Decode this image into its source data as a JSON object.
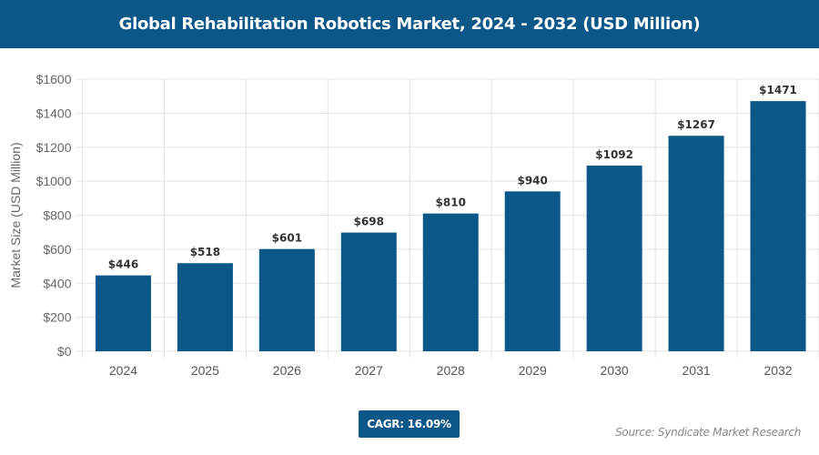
{
  "header": {
    "title": "Global Rehabilitation Robotics Market, 2024 - 2032 (USD Million)"
  },
  "chart_data": {
    "type": "bar",
    "title": "Global Rehabilitation Robotics Market, 2024 - 2032 (USD Million)",
    "xlabel": "",
    "ylabel": "Market Size (USD Million)",
    "categories": [
      "2024",
      "2025",
      "2026",
      "2027",
      "2028",
      "2029",
      "2030",
      "2031",
      "2032"
    ],
    "values": [
      446,
      518,
      601,
      698,
      810,
      940,
      1092,
      1267,
      1471
    ],
    "data_labels": [
      "$446",
      "$518",
      "$601",
      "$698",
      "$810",
      "$940",
      "$1092",
      "$1267",
      "$1471"
    ],
    "ylim": [
      0,
      1600
    ],
    "yticks": [
      0,
      200,
      400,
      600,
      800,
      1000,
      1200,
      1400,
      1600
    ],
    "ytick_labels": [
      "$0",
      "$200",
      "$400",
      "$600",
      "$800",
      "$1000",
      "$1200",
      "$1400",
      "$1600"
    ],
    "grid": true,
    "bar_color": "#0b5788"
  },
  "footer": {
    "cagr": "CAGR: 16.09%",
    "source": "Source: Syndicate Market Research"
  }
}
